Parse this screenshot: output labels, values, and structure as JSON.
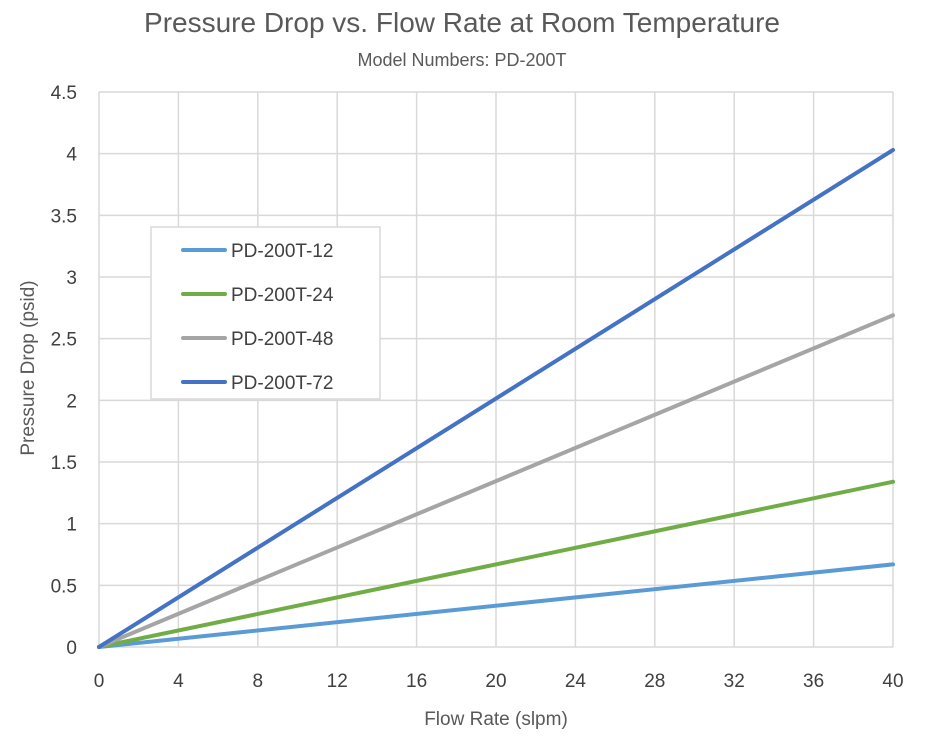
{
  "chart_data": {
    "type": "line",
    "title": "Pressure Drop vs. Flow Rate at Room Temperature",
    "subtitle": "Model Numbers: PD-200T",
    "xlabel": "Flow Rate (slpm)",
    "ylabel": "Pressure Drop (psid)",
    "xlim": [
      0,
      40
    ],
    "ylim": [
      0,
      4.5
    ],
    "x_ticks": [
      "0",
      "4",
      "8",
      "12",
      "16",
      "20",
      "24",
      "28",
      "32",
      "36",
      "40"
    ],
    "y_ticks": [
      "0",
      "0.5",
      "1",
      "1.5",
      "2",
      "2.5",
      "3",
      "3.5",
      "4",
      "4.5"
    ],
    "grid": true,
    "legend_position": "left-center",
    "series": [
      {
        "name": "PD-200T-12",
        "color": "#5b9bd5",
        "x": [
          0,
          40
        ],
        "y": [
          0,
          0.67
        ]
      },
      {
        "name": "PD-200T-24",
        "color": "#70ad47",
        "x": [
          0,
          40
        ],
        "y": [
          0,
          1.34
        ]
      },
      {
        "name": "PD-200T-48",
        "color": "#a5a5a5",
        "x": [
          0,
          40
        ],
        "y": [
          0,
          2.69
        ]
      },
      {
        "name": "PD-200T-72",
        "color": "#4472c4",
        "x": [
          0,
          40
        ],
        "y": [
          0,
          4.03
        ]
      }
    ]
  }
}
